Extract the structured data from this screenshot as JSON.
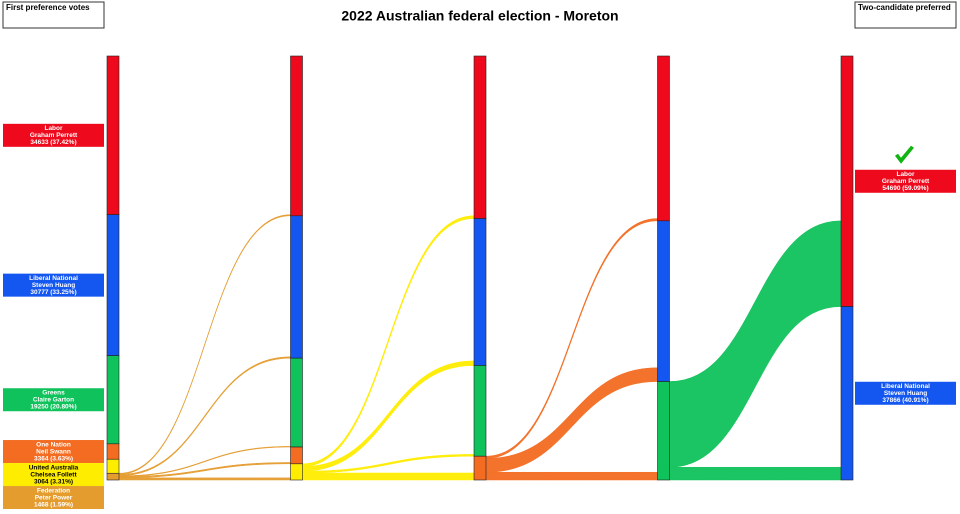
{
  "chart_data": {
    "type": "sankey",
    "title": "2022 Australian federal election - Moreton",
    "left_label": "First preference votes",
    "right_label": "Two-candidate preferred",
    "candidates": [
      {
        "party": "Labor",
        "name": "Graham Perrett",
        "color": "#ee0a1c",
        "votes": 34633,
        "value_label": "34633 (37.42%)"
      },
      {
        "party": "Liberal National",
        "name": "Steven Huang",
        "color": "#1456f0",
        "votes": 30777,
        "value_label": "30777 (33.25%)"
      },
      {
        "party": "Greens",
        "name": "Claire Garton",
        "color": "#10c25b",
        "votes": 19250,
        "value_label": "19250 (20.80%)"
      },
      {
        "party": "One Nation",
        "name": "Neil Swann",
        "color": "#f36c21",
        "votes": 3364,
        "value_label": "3364 (3.63%)"
      },
      {
        "party": "United Australia",
        "name": "Chelsea Follett",
        "color": "#ffed00",
        "votes": 3064,
        "value_label": "3064 (3.31%)"
      },
      {
        "party": "Federation",
        "name": "Peter Power",
        "color": "#e59c2f",
        "votes": 1468,
        "value_label": "1468 (1.59%)"
      }
    ],
    "rounds": [
      {
        "transfers": [
          250,
          300,
          150,
          300,
          468,
          null
        ]
      },
      {
        "transfers": [
          600,
          1000,
          400,
          1532,
          null,
          null
        ]
      },
      {
        "transfers": [
          500,
          3000,
          1696,
          null,
          null,
          null
        ]
      },
      {
        "transfers": [
          18707,
          2789,
          null,
          null,
          null,
          null
        ]
      }
    ],
    "final": [
      {
        "party": "Labor",
        "name": "Graham Perrett",
        "color": "#ee0a1c",
        "votes": 54690,
        "value_label": "54690 (59.09%)"
      },
      {
        "party": "Liberal National",
        "name": "Steven Huang",
        "color": "#1456f0",
        "votes": 37866,
        "value_label": "37866 (40.91%)"
      }
    ]
  }
}
